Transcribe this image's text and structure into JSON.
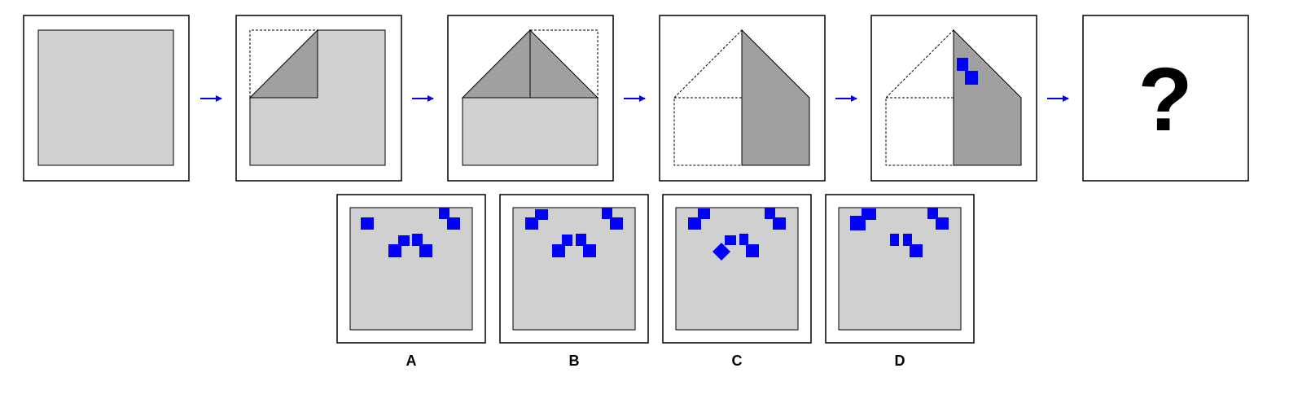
{
  "puzzle": {
    "question_mark": "?",
    "options": [
      {
        "label": "A"
      },
      {
        "label": "B"
      },
      {
        "label": "C"
      },
      {
        "label": "D"
      }
    ]
  },
  "colors": {
    "paper": "#d0d0d0",
    "fold": "#a0a0a0",
    "hole": "#0000ff",
    "arrow": "#0000ff",
    "frame": "#000000"
  }
}
